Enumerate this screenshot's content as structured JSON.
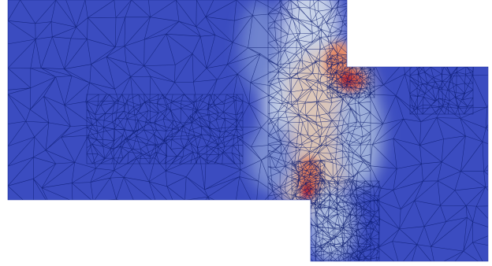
{
  "scene": {
    "description_colors": {
      "background": "#ffffff",
      "low": "#3b4cc0",
      "mid": "#c9d3e6",
      "high": "#b40426",
      "mesh_lines": "#0a1a6e"
    },
    "colormap": "cool-to-warm"
  }
}
